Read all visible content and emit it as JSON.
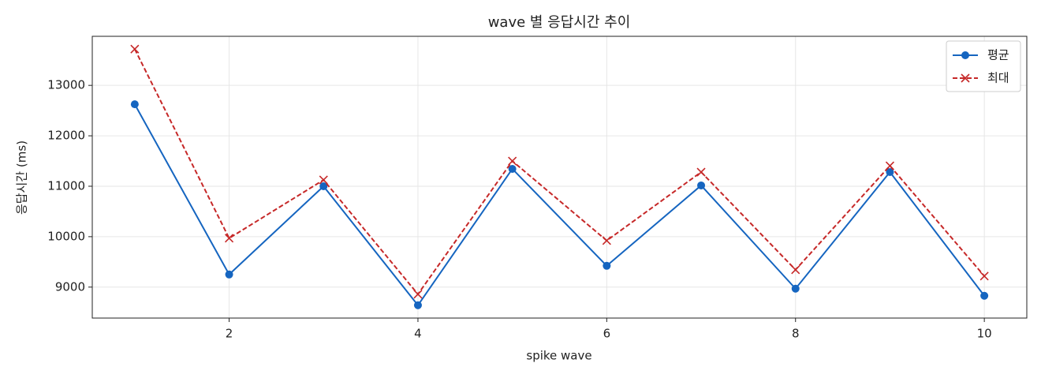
{
  "chart_data": {
    "type": "line",
    "title": "wave 별 응답시간 추이",
    "xlabel": "spike wave",
    "ylabel": "응답시간 (ms)",
    "x": [
      1,
      2,
      3,
      4,
      5,
      6,
      7,
      8,
      9,
      10
    ],
    "series": [
      {
        "name": "평균",
        "color": "#1565c0",
        "values": [
          12625,
          9250,
          11000,
          8640,
          11344,
          9422,
          11016,
          8969,
          11281,
          8828
        ]
      },
      {
        "name": "최대",
        "color": "#c62828",
        "values": [
          13719,
          9969,
          11125,
          8859,
          11500,
          9922,
          11281,
          9344,
          11406,
          9219
        ]
      }
    ],
    "xlim": [
      0.55,
      10.45
    ],
    "ylim": [
      8386,
      13973
    ],
    "xticks": [
      2,
      4,
      6,
      8,
      10
    ],
    "yticks": [
      9000,
      10000,
      11000,
      12000,
      13000
    ],
    "grid": true,
    "legend": "upper right"
  }
}
